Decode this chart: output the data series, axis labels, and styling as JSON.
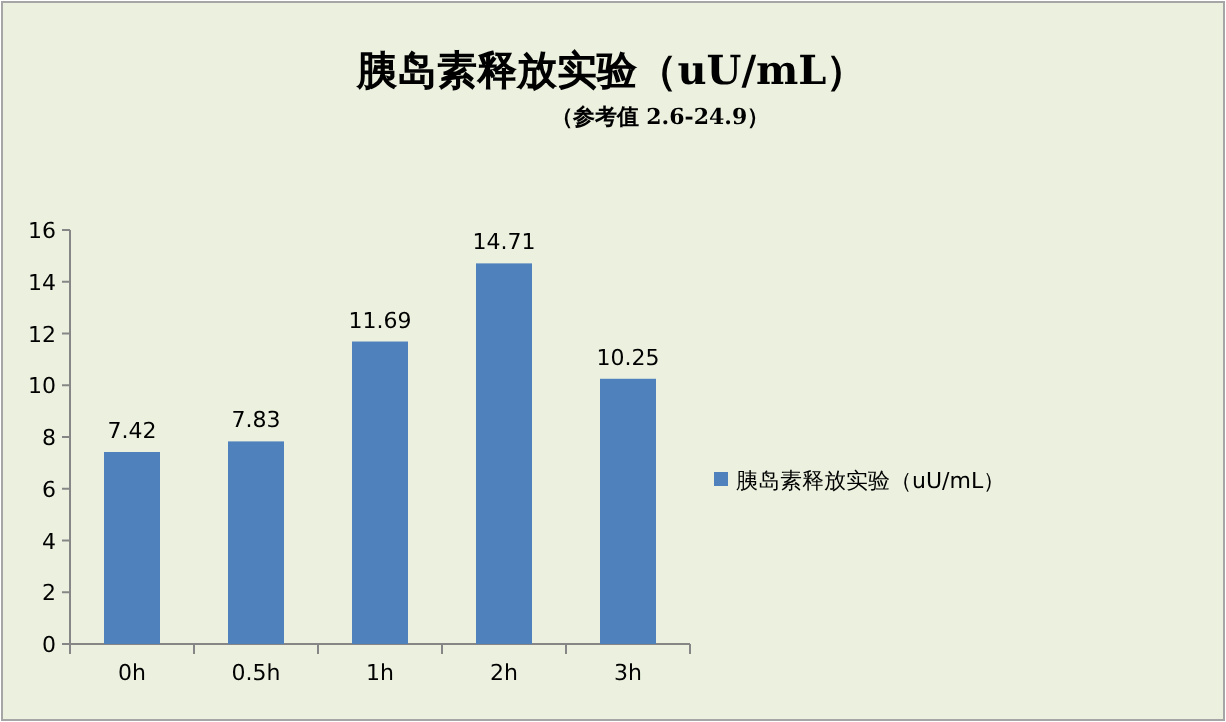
{
  "chart_data": {
    "type": "bar",
    "title": "胰岛素释放实验（uU/mL）",
    "subtitle": "（参考值 2.6-24.9）",
    "categories": [
      "0h",
      "0.5h",
      "1h",
      "2h",
      "3h"
    ],
    "series": [
      {
        "name": "胰岛素释放实验（uU/mL）",
        "color": "#4f81bd",
        "values": [
          7.42,
          7.83,
          11.69,
          14.71,
          10.25
        ]
      }
    ],
    "ylim": [
      0,
      16
    ],
    "yticks": [
      0,
      2,
      4,
      6,
      8,
      10,
      12,
      14,
      16
    ],
    "data_labels": true,
    "legend": "right",
    "grid": false
  }
}
